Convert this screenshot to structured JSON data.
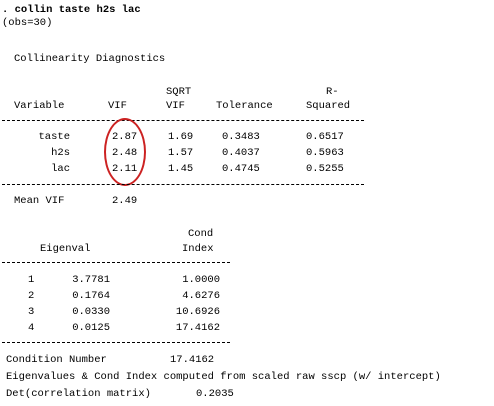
{
  "command": ". collin taste h2s lac",
  "obs": "(obs=30)",
  "section_title": "Collinearity Diagnostics",
  "vif_table": {
    "header_top": {
      "sqrt": "SQRT",
      "r": "R-"
    },
    "header": {
      "variable": "Variable",
      "vif": "VIF",
      "sqrt_vif": "VIF",
      "tolerance": "Tolerance",
      "r_squared": "Squared"
    },
    "rows": [
      {
        "variable": "taste",
        "vif": "2.87",
        "sqrt_vif": "1.69",
        "tolerance": "0.3483",
        "r_squared": "0.6517"
      },
      {
        "variable": "h2s",
        "vif": "2.48",
        "sqrt_vif": "1.57",
        "tolerance": "0.4037",
        "r_squared": "0.5963"
      },
      {
        "variable": "lac",
        "vif": "2.11",
        "sqrt_vif": "1.45",
        "tolerance": "0.4745",
        "r_squared": "0.5255"
      }
    ],
    "mean_vif_label": "Mean VIF",
    "mean_vif_value": "2.49"
  },
  "eigen_table": {
    "header_top": {
      "cond": "Cond"
    },
    "header": {
      "eigenval": "Eigenval",
      "index": "Index"
    },
    "rows": [
      {
        "n": "1",
        "eigenval": "3.7781",
        "cond_index": "1.0000"
      },
      {
        "n": "2",
        "eigenval": "0.1764",
        "cond_index": "4.6276"
      },
      {
        "n": "3",
        "eigenval": "0.0330",
        "cond_index": "10.6926"
      },
      {
        "n": "4",
        "eigenval": "0.0125",
        "cond_index": "17.4162"
      }
    ]
  },
  "condition_number_label": "Condition Number",
  "condition_number_value": "17.4162",
  "footnote": "Eigenvalues & Cond Index computed from scaled raw sscp (w/ intercept)",
  "det_label": "Det(correlation matrix)",
  "det_value": "0.2035",
  "colors": {
    "annotation_circle": "#cc2222"
  }
}
